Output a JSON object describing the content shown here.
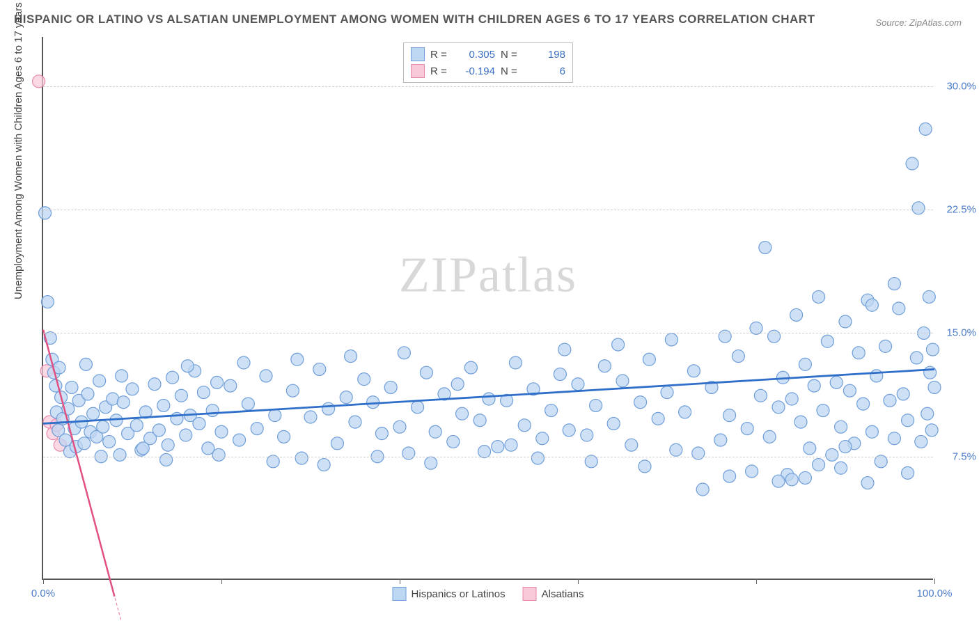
{
  "title": "HISPANIC OR LATINO VS ALSATIAN UNEMPLOYMENT AMONG WOMEN WITH CHILDREN AGES 6 TO 17 YEARS CORRELATION CHART",
  "source": "Source: ZipAtlas.com",
  "ylabel": "Unemployment Among Women with Children Ages 6 to 17 years",
  "watermark_a": "ZIP",
  "watermark_b": "atlas",
  "chart": {
    "type": "scatter",
    "xlim": [
      0,
      100
    ],
    "ylim": [
      0,
      33
    ],
    "ytick_values": [
      7.5,
      15.0,
      22.5,
      30.0
    ],
    "ytick_labels": [
      "7.5%",
      "15.0%",
      "22.5%",
      "30.0%"
    ],
    "xtick_values": [
      0,
      20,
      40,
      60,
      80,
      100
    ],
    "xtick_labels_shown": {
      "0": "0.0%",
      "100": "100.0%"
    },
    "background_color": "#ffffff",
    "grid_color": "#d0d0d0",
    "marker_radius": 9,
    "marker_stroke_width": 1.2,
    "trend_line_width_blue": 2.8,
    "trend_line_width_pink": 2.5
  },
  "series": [
    {
      "name": "Hispanics or Latinos",
      "fill": "#bdd6f1",
      "stroke": "#6f9ed9",
      "fill_opacity": 0.75,
      "R_label": "R =",
      "R": "0.305",
      "N_label": "N =",
      "N": "198",
      "trend": {
        "x1": 0,
        "y1": 9.5,
        "x2": 100,
        "y2": 12.8,
        "color": "#2f6fc9",
        "dash": "none"
      },
      "points": [
        [
          0.2,
          22.3
        ],
        [
          0.5,
          16.9
        ],
        [
          0.8,
          14.7
        ],
        [
          1.0,
          13.4
        ],
        [
          1.2,
          12.6
        ],
        [
          1.4,
          11.8
        ],
        [
          1.5,
          10.2
        ],
        [
          1.7,
          9.1
        ],
        [
          1.8,
          12.9
        ],
        [
          2.0,
          11.1
        ],
        [
          2.2,
          9.8
        ],
        [
          2.5,
          8.5
        ],
        [
          2.8,
          10.4
        ],
        [
          3.0,
          7.8
        ],
        [
          3.2,
          11.7
        ],
        [
          3.5,
          9.2
        ],
        [
          3.7,
          8.1
        ],
        [
          4.0,
          10.9
        ],
        [
          4.3,
          9.6
        ],
        [
          4.6,
          8.3
        ],
        [
          5.0,
          11.3
        ],
        [
          5.3,
          9.0
        ],
        [
          5.6,
          10.1
        ],
        [
          6.0,
          8.7
        ],
        [
          6.3,
          12.1
        ],
        [
          6.7,
          9.3
        ],
        [
          7.0,
          10.5
        ],
        [
          7.4,
          8.4
        ],
        [
          7.8,
          11.0
        ],
        [
          8.2,
          9.7
        ],
        [
          8.6,
          7.6
        ],
        [
          9.0,
          10.8
        ],
        [
          9.5,
          8.9
        ],
        [
          10.0,
          11.6
        ],
        [
          10.5,
          9.4
        ],
        [
          11.0,
          7.9
        ],
        [
          11.5,
          10.2
        ],
        [
          12.0,
          8.6
        ],
        [
          12.5,
          11.9
        ],
        [
          13.0,
          9.1
        ],
        [
          13.5,
          10.6
        ],
        [
          14.0,
          8.2
        ],
        [
          14.5,
          12.3
        ],
        [
          15.0,
          9.8
        ],
        [
          15.5,
          11.2
        ],
        [
          16.0,
          8.8
        ],
        [
          16.5,
          10.0
        ],
        [
          17.0,
          12.7
        ],
        [
          17.5,
          9.5
        ],
        [
          18.0,
          11.4
        ],
        [
          18.5,
          8.0
        ],
        [
          19.0,
          10.3
        ],
        [
          19.5,
          12.0
        ],
        [
          20.0,
          9.0
        ],
        [
          21.0,
          11.8
        ],
        [
          22.0,
          8.5
        ],
        [
          23.0,
          10.7
        ],
        [
          24.0,
          9.2
        ],
        [
          25.0,
          12.4
        ],
        [
          26.0,
          10.0
        ],
        [
          27.0,
          8.7
        ],
        [
          28.0,
          11.5
        ],
        [
          29.0,
          7.4
        ],
        [
          30.0,
          9.9
        ],
        [
          31.0,
          12.8
        ],
        [
          32.0,
          10.4
        ],
        [
          33.0,
          8.3
        ],
        [
          34.0,
          11.1
        ],
        [
          35.0,
          9.6
        ],
        [
          36.0,
          12.2
        ],
        [
          37.0,
          10.8
        ],
        [
          38.0,
          8.9
        ],
        [
          39.0,
          11.7
        ],
        [
          40.0,
          9.3
        ],
        [
          41.0,
          7.7
        ],
        [
          42.0,
          10.5
        ],
        [
          43.0,
          12.6
        ],
        [
          44.0,
          9.0
        ],
        [
          45.0,
          11.3
        ],
        [
          46.0,
          8.4
        ],
        [
          47.0,
          10.1
        ],
        [
          48.0,
          12.9
        ],
        [
          49.0,
          9.7
        ],
        [
          50.0,
          11.0
        ],
        [
          51.0,
          8.1
        ],
        [
          52.0,
          10.9
        ],
        [
          53.0,
          13.2
        ],
        [
          54.0,
          9.4
        ],
        [
          55.0,
          11.6
        ],
        [
          56.0,
          8.6
        ],
        [
          57.0,
          10.3
        ],
        [
          58.0,
          12.5
        ],
        [
          59.0,
          9.1
        ],
        [
          60.0,
          11.9
        ],
        [
          61.0,
          8.8
        ],
        [
          62.0,
          10.6
        ],
        [
          63.0,
          13.0
        ],
        [
          64.0,
          9.5
        ],
        [
          65.0,
          12.1
        ],
        [
          66.0,
          8.2
        ],
        [
          67.0,
          10.8
        ],
        [
          68.0,
          13.4
        ],
        [
          69.0,
          9.8
        ],
        [
          70.0,
          11.4
        ],
        [
          71.0,
          7.9
        ],
        [
          72.0,
          10.2
        ],
        [
          73.0,
          12.7
        ],
        [
          74.0,
          5.5
        ],
        [
          75.0,
          11.7
        ],
        [
          76.0,
          8.5
        ],
        [
          77.0,
          10.0
        ],
        [
          78.0,
          13.6
        ],
        [
          79.0,
          9.2
        ],
        [
          80.0,
          15.3
        ],
        [
          80.5,
          11.2
        ],
        [
          81.0,
          20.2
        ],
        [
          81.5,
          8.7
        ],
        [
          82.0,
          14.8
        ],
        [
          82.5,
          10.5
        ],
        [
          83.0,
          12.3
        ],
        [
          83.5,
          6.4
        ],
        [
          84.0,
          11.0
        ],
        [
          84.5,
          16.1
        ],
        [
          85.0,
          9.6
        ],
        [
          85.5,
          13.1
        ],
        [
          86.0,
          8.0
        ],
        [
          86.5,
          11.8
        ],
        [
          87.0,
          17.2
        ],
        [
          87.5,
          10.3
        ],
        [
          88.0,
          14.5
        ],
        [
          88.5,
          7.6
        ],
        [
          89.0,
          12.0
        ],
        [
          89.5,
          9.3
        ],
        [
          90.0,
          15.7
        ],
        [
          90.5,
          11.5
        ],
        [
          91.0,
          8.3
        ],
        [
          91.5,
          13.8
        ],
        [
          92.0,
          10.7
        ],
        [
          92.5,
          17.0
        ],
        [
          93.0,
          9.0
        ],
        [
          93.5,
          12.4
        ],
        [
          94.0,
          7.2
        ],
        [
          94.5,
          14.2
        ],
        [
          95.0,
          10.9
        ],
        [
          95.5,
          8.6
        ],
        [
          96.0,
          16.5
        ],
        [
          96.5,
          11.3
        ],
        [
          97.0,
          9.7
        ],
        [
          97.5,
          25.3
        ],
        [
          98.0,
          13.5
        ],
        [
          98.2,
          22.6
        ],
        [
          98.5,
          8.4
        ],
        [
          98.8,
          15.0
        ],
        [
          99.0,
          27.4
        ],
        [
          99.2,
          10.1
        ],
        [
          99.4,
          17.2
        ],
        [
          99.5,
          12.6
        ],
        [
          99.7,
          9.1
        ],
        [
          99.8,
          14.0
        ],
        [
          100.0,
          11.7
        ],
        [
          4.8,
          13.1
        ],
        [
          6.5,
          7.5
        ],
        [
          8.8,
          12.4
        ],
        [
          11.2,
          8.0
        ],
        [
          13.8,
          7.3
        ],
        [
          16.2,
          13.0
        ],
        [
          19.7,
          7.6
        ],
        [
          22.5,
          13.2
        ],
        [
          25.8,
          7.2
        ],
        [
          28.5,
          13.4
        ],
        [
          31.5,
          7.0
        ],
        [
          34.5,
          13.6
        ],
        [
          37.5,
          7.5
        ],
        [
          40.5,
          13.8
        ],
        [
          43.5,
          7.1
        ],
        [
          46.5,
          11.9
        ],
        [
          49.5,
          7.8
        ],
        [
          52.5,
          8.2
        ],
        [
          55.5,
          7.4
        ],
        [
          58.5,
          14.0
        ],
        [
          61.5,
          7.2
        ],
        [
          64.5,
          14.3
        ],
        [
          67.5,
          6.9
        ],
        [
          70.5,
          14.6
        ],
        [
          73.5,
          7.7
        ],
        [
          76.5,
          14.8
        ],
        [
          79.5,
          6.6
        ],
        [
          82.5,
          6.0
        ],
        [
          85.5,
          6.2
        ],
        [
          89.5,
          6.8
        ],
        [
          92.5,
          5.9
        ],
        [
          95.5,
          18.0
        ],
        [
          97.0,
          6.5
        ],
        [
          84.0,
          6.1
        ],
        [
          87.0,
          7.0
        ],
        [
          77.0,
          6.3
        ],
        [
          90.0,
          8.1
        ],
        [
          93.0,
          16.7
        ]
      ]
    },
    {
      "name": "Alsatians",
      "fill": "#f8c9d9",
      "stroke": "#e889ac",
      "fill_opacity": 0.72,
      "R_label": "R =",
      "R": "-0.194",
      "N_label": "N =",
      "N": "6",
      "trend": {
        "x1": 0,
        "y1": 15.2,
        "x2": 8,
        "y2": -1.0,
        "color": "#e25083",
        "dash": "none"
      },
      "trend_ext": {
        "x1": 0,
        "y1": 15.2,
        "x2": 9,
        "y2": -3.0,
        "color": "#e889ac",
        "dash": "4 3"
      },
      "points": [
        [
          -0.5,
          30.3
        ],
        [
          0.4,
          12.7
        ],
        [
          0.7,
          9.6
        ],
        [
          1.1,
          8.9
        ],
        [
          1.5,
          9.4
        ],
        [
          1.9,
          8.2
        ]
      ]
    }
  ],
  "bottom_legend": [
    {
      "label": "Hispanics or Latinos",
      "fill": "#bdd6f1",
      "stroke": "#6f9ed9"
    },
    {
      "label": "Alsatians",
      "fill": "#f8c9d9",
      "stroke": "#e889ac"
    }
  ]
}
